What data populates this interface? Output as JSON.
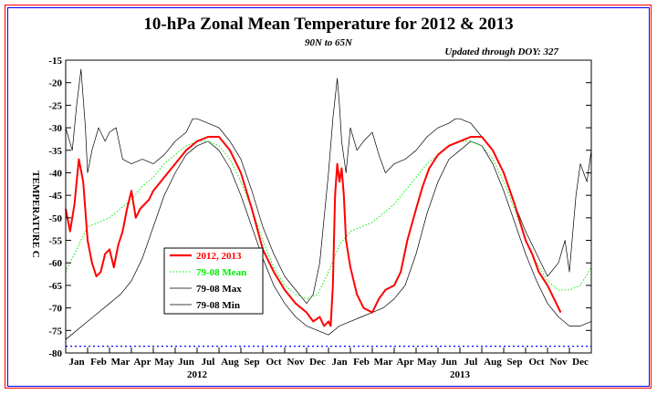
{
  "chart_data": {
    "type": "line",
    "title": "10-hPa Zonal Mean Temperature for 2012 & 2013",
    "subtitle": "90N to 65N",
    "note": "Updated through DOY: 327",
    "ylabel": "TEMPERATURE C",
    "ylim": [
      -80,
      -15
    ],
    "yticks": [
      -15,
      -20,
      -25,
      -30,
      -35,
      -40,
      -45,
      -50,
      -55,
      -60,
      -65,
      -70,
      -75,
      -80
    ],
    "month_labels": [
      "Jan",
      "Feb",
      "Mar",
      "Apr",
      "May",
      "Jun",
      "Jul",
      "Aug",
      "Sep",
      "Oct",
      "Nov",
      "Dec",
      "Jan",
      "Feb",
      "Mar",
      "Apr",
      "May",
      "Jun",
      "Jul",
      "Aug",
      "Sep",
      "Oct",
      "Nov",
      "Dec"
    ],
    "year_labels": [
      "2012",
      "2013"
    ],
    "x_unit": "month index (0 = Jan 2012, 24 = end of Dec 2013)",
    "xlim": [
      0,
      24
    ],
    "reference_line": {
      "y": -78.5,
      "color": "#0000ff",
      "style": "dotted"
    },
    "legend_position": "lower-left",
    "series": [
      {
        "name": "2012, 2013",
        "color": "#ff0000",
        "style": "solid-thick",
        "x": [
          0,
          0.2,
          0.4,
          0.6,
          0.8,
          1.0,
          1.2,
          1.4,
          1.6,
          1.8,
          2.0,
          2.2,
          2.4,
          2.6,
          2.8,
          3.0,
          3.2,
          3.4,
          3.6,
          3.8,
          4.0,
          4.5,
          5.0,
          5.5,
          6.0,
          6.5,
          7.0,
          7.5,
          8.0,
          8.5,
          9.0,
          9.5,
          10.0,
          10.5,
          11.0,
          11.3,
          11.6,
          11.8,
          12.0,
          12.1,
          12.2,
          12.3,
          12.4,
          12.5,
          12.6,
          12.7,
          12.8,
          13.0,
          13.3,
          13.6,
          14.0,
          14.3,
          14.6,
          15.0,
          15.3,
          15.6,
          16.0,
          16.3,
          16.6,
          17.0,
          17.5,
          18.0,
          18.5,
          19.0,
          19.5,
          20.0,
          20.5,
          21.0,
          21.3,
          21.6,
          22.0,
          22.3,
          22.6
        ],
        "y": [
          -48,
          -53,
          -47,
          -37,
          -42,
          -55,
          -60,
          -63,
          -62,
          -58,
          -57,
          -61,
          -56,
          -53,
          -48,
          -44,
          -50,
          -48,
          -47,
          -46,
          -44,
          -41,
          -38,
          -35,
          -33,
          -32,
          -32,
          -35,
          -40,
          -48,
          -57,
          -62,
          -66,
          -69,
          -71,
          -73,
          -72,
          -74,
          -73,
          -74,
          -65,
          -45,
          -38,
          -42,
          -39,
          -45,
          -55,
          -61,
          -67,
          -70,
          -71,
          -68,
          -66,
          -65,
          -62,
          -55,
          -48,
          -43,
          -39,
          -36,
          -34,
          -33,
          -32,
          -32,
          -35,
          -40,
          -47,
          -55,
          -58,
          -62,
          -65,
          -68,
          -71
        ]
      },
      {
        "name": "79-08 Mean",
        "color": "#00ee00",
        "style": "dotted",
        "x": [
          0,
          0.5,
          1.0,
          1.5,
          2.0,
          2.5,
          3.0,
          3.5,
          4.0,
          4.5,
          5.0,
          5.5,
          6.0,
          6.5,
          7.0,
          7.5,
          8.0,
          8.5,
          9.0,
          9.5,
          10.0,
          10.5,
          11.0,
          11.5,
          12.0,
          12.5,
          13.0,
          13.5,
          14.0,
          14.5,
          15.0,
          15.5,
          16.0,
          16.5,
          17.0,
          17.5,
          18.0,
          18.5,
          19.0,
          19.5,
          20.0,
          20.5,
          21.0,
          21.5,
          22.0,
          22.5,
          23.0,
          23.5,
          24.0
        ],
        "y": [
          -62,
          -57,
          -52,
          -51,
          -50,
          -48,
          -46,
          -43,
          -41,
          -38,
          -36,
          -34,
          -33,
          -33,
          -34,
          -37,
          -42,
          -48,
          -55,
          -61,
          -65,
          -67,
          -68,
          -67,
          -62,
          -56,
          -53,
          -52,
          -51,
          -49,
          -47,
          -44,
          -41,
          -38,
          -36,
          -34,
          -33,
          -33,
          -34,
          -37,
          -42,
          -48,
          -55,
          -60,
          -64,
          -66,
          -66,
          -65,
          -61
        ]
      },
      {
        "name": "79-08 Max",
        "color": "#000000",
        "style": "thin",
        "x": [
          0,
          0.3,
          0.5,
          0.7,
          0.9,
          1.0,
          1.2,
          1.5,
          1.8,
          2.0,
          2.3,
          2.6,
          3.0,
          3.5,
          4.0,
          4.5,
          5.0,
          5.5,
          5.8,
          6.0,
          6.5,
          7.0,
          7.5,
          8.0,
          8.5,
          9.0,
          9.5,
          10.0,
          10.5,
          11.0,
          11.3,
          11.6,
          12.0,
          12.2,
          12.4,
          12.5,
          12.6,
          12.8,
          13.0,
          13.3,
          13.6,
          14.0,
          14.3,
          14.6,
          15.0,
          15.5,
          16.0,
          16.5,
          17.0,
          17.5,
          17.8,
          18.0,
          18.5,
          19.0,
          19.5,
          20.0,
          20.5,
          21.0,
          21.5,
          22.0,
          22.5,
          22.8,
          23.0,
          23.3,
          23.5,
          23.8,
          24.0
        ],
        "y": [
          -30,
          -35,
          -25,
          -17,
          -30,
          -40,
          -35,
          -30,
          -33,
          -31,
          -30,
          -37,
          -38,
          -37,
          -38,
          -36,
          -33,
          -31,
          -28,
          -28,
          -29,
          -30,
          -33,
          -37,
          -44,
          -52,
          -58,
          -63,
          -66,
          -69,
          -67,
          -60,
          -40,
          -28,
          -19,
          -25,
          -33,
          -40,
          -30,
          -35,
          -33,
          -31,
          -36,
          -40,
          -38,
          -37,
          -35,
          -32,
          -30,
          -29,
          -28,
          -28,
          -29,
          -32,
          -35,
          -40,
          -47,
          -53,
          -58,
          -63,
          -60,
          -55,
          -62,
          -45,
          -38,
          -42,
          -35
        ]
      },
      {
        "name": "79-08 Min",
        "color": "#000000",
        "style": "thin",
        "x": [
          0,
          0.5,
          1.0,
          1.5,
          2.0,
          2.5,
          3.0,
          3.5,
          4.0,
          4.5,
          5.0,
          5.5,
          6.0,
          6.5,
          7.0,
          7.5,
          8.0,
          8.5,
          9.0,
          9.5,
          10.0,
          10.5,
          11.0,
          11.5,
          12.0,
          12.5,
          13.0,
          13.5,
          14.0,
          14.5,
          15.0,
          15.5,
          16.0,
          16.5,
          17.0,
          17.5,
          18.0,
          18.5,
          19.0,
          19.5,
          20.0,
          20.5,
          21.0,
          21.5,
          22.0,
          22.5,
          23.0,
          23.5,
          24.0
        ],
        "y": [
          -77,
          -75,
          -73,
          -71,
          -69,
          -67,
          -64,
          -59,
          -52,
          -45,
          -40,
          -36,
          -34,
          -33,
          -35,
          -39,
          -45,
          -52,
          -59,
          -65,
          -69,
          -72,
          -74,
          -75,
          -76,
          -74,
          -73,
          -72,
          -71,
          -70,
          -68,
          -65,
          -58,
          -49,
          -42,
          -37,
          -35,
          -33,
          -34,
          -38,
          -44,
          -51,
          -58,
          -64,
          -69,
          -72,
          -74,
          -74,
          -73
        ]
      }
    ]
  }
}
